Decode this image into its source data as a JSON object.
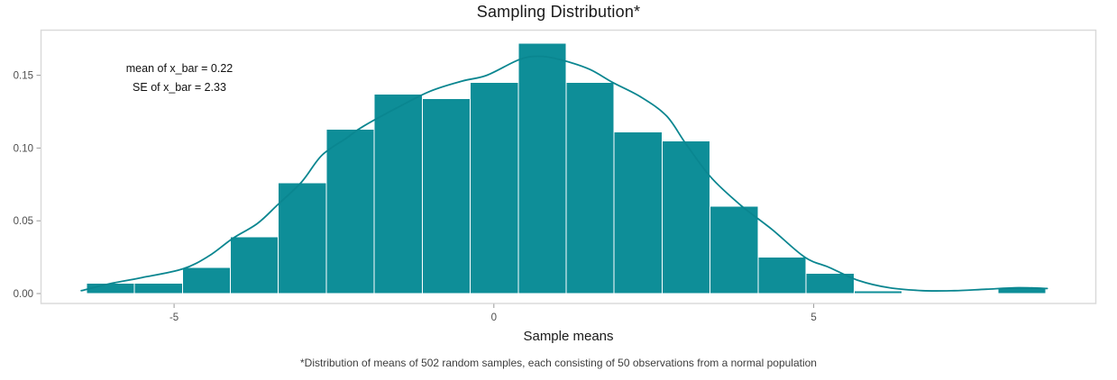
{
  "chart": {
    "title": "Sampling Distribution*",
    "x_axis_label": "Sample means",
    "caption": "*Distribution of means of 502 random samples, each consisting of 50 observations from a normal population",
    "annotation": {
      "line1": "mean of x_bar = 0.22",
      "line2": "SE of x_bar = 2.33"
    }
  },
  "chart_data": {
    "type": "bar",
    "subtype": "histogram-with-density-curve",
    "title": "Sampling Distribution*",
    "xlabel": "Sample means",
    "ylabel": "",
    "xlim": [
      -7.08,
      9.41
    ],
    "ylim": [
      -0.0068,
      0.181
    ],
    "grid": "off",
    "legend": "none",
    "x_ticks": [
      -5,
      0,
      5
    ],
    "x_tick_labels": [
      "-5",
      "0",
      "5"
    ],
    "y_ticks": [
      0,
      0.05,
      0.1,
      0.15
    ],
    "y_tick_labels": [
      "0.00",
      "0.05",
      "0.10",
      "0.15"
    ],
    "binwidth": 0.75,
    "bins": [
      {
        "x0": -6.37,
        "density": 0.007
      },
      {
        "x0": -5.62,
        "density": 0.007
      },
      {
        "x0": -4.87,
        "density": 0.018
      },
      {
        "x0": -4.12,
        "density": 0.039
      },
      {
        "x0": -3.37,
        "density": 0.076
      },
      {
        "x0": -2.62,
        "density": 0.113
      },
      {
        "x0": -1.87,
        "density": 0.137
      },
      {
        "x0": -1.12,
        "density": 0.134
      },
      {
        "x0": -0.37,
        "density": 0.145
      },
      {
        "x0": 0.38,
        "density": 0.172
      },
      {
        "x0": 1.13,
        "density": 0.145
      },
      {
        "x0": 1.88,
        "density": 0.111
      },
      {
        "x0": 2.63,
        "density": 0.105
      },
      {
        "x0": 3.38,
        "density": 0.06
      },
      {
        "x0": 4.13,
        "density": 0.025
      },
      {
        "x0": 4.88,
        "density": 0.014
      },
      {
        "x0": 5.63,
        "density": 0.002
      },
      {
        "x0": 6.38,
        "density": 0.0
      },
      {
        "x0": 7.13,
        "density": 0.0
      },
      {
        "x0": 7.88,
        "density": 0.004
      }
    ],
    "density_curve": [
      [
        -6.45,
        0.002
      ],
      [
        -6.0,
        0.0068
      ],
      [
        -5.5,
        0.011
      ],
      [
        -4.86,
        0.017
      ],
      [
        -4.45,
        0.026
      ],
      [
        -4.08,
        0.038
      ],
      [
        -3.7,
        0.048
      ],
      [
        -3.38,
        0.061
      ],
      [
        -3.0,
        0.077
      ],
      [
        -2.69,
        0.095
      ],
      [
        -2.3,
        0.107
      ],
      [
        -2.04,
        0.115
      ],
      [
        -1.5,
        0.128
      ],
      [
        -1.0,
        0.139
      ],
      [
        -0.5,
        0.146
      ],
      [
        -0.11,
        0.15
      ],
      [
        0.41,
        0.161
      ],
      [
        0.75,
        0.163
      ],
      [
        1.1,
        0.16
      ],
      [
        1.5,
        0.154
      ],
      [
        1.86,
        0.145
      ],
      [
        2.3,
        0.135
      ],
      [
        2.7,
        0.122
      ],
      [
        3.0,
        0.103
      ],
      [
        3.39,
        0.08
      ],
      [
        3.85,
        0.061
      ],
      [
        4.35,
        0.044
      ],
      [
        4.86,
        0.025
      ],
      [
        5.24,
        0.018
      ],
      [
        5.7,
        0.009
      ],
      [
        6.18,
        0.004
      ],
      [
        6.7,
        0.002
      ],
      [
        7.2,
        0.002
      ],
      [
        7.7,
        0.003
      ],
      [
        8.2,
        0.004
      ],
      [
        8.65,
        0.0035
      ]
    ],
    "colors": {
      "bar_fill": "#0E8E98",
      "bar_stroke": "#FFFFFF",
      "curve": "#0A8690",
      "panel_border": "#DADADA",
      "tick_mark": "#999999",
      "tick_label": "#4D4D4D",
      "title": "#1A1A1A",
      "caption": "#3D3D3D"
    }
  }
}
